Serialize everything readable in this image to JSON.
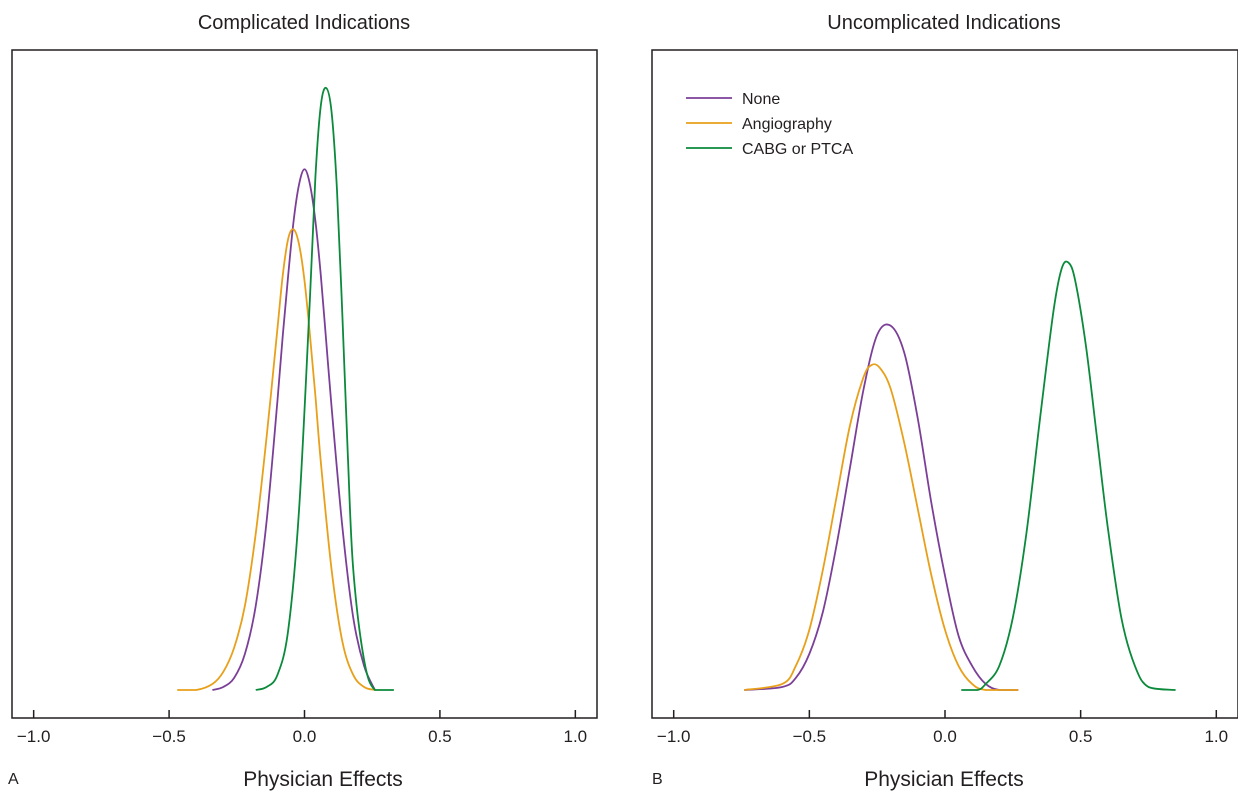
{
  "colors": {
    "none": "#7b3f98",
    "angiography": "#e8a01a",
    "cabg": "#0a8a3a",
    "axis": "#231f20"
  },
  "chart_data": [
    {
      "type": "line",
      "panel_letter": "A",
      "title": "Complicated Indications",
      "xlabel": "Physician Effects",
      "ylabel": "",
      "xlim": [
        -1.08,
        1.08
      ],
      "ylim": [
        0,
        1.0
      ],
      "xticks": [
        -1.0,
        -0.5,
        0.0,
        0.5,
        1.0
      ],
      "xtick_labels": [
        "−1.0",
        "−0.5",
        "0.0",
        "0.5",
        "1.0"
      ],
      "yticks": [],
      "grid": false,
      "legend": null,
      "series": [
        {
          "name": "None",
          "color_key": "none",
          "x": [
            -0.34,
            -0.3,
            -0.26,
            -0.22,
            -0.18,
            -0.14,
            -0.1,
            -0.08,
            -0.06,
            -0.04,
            -0.02,
            0.0,
            0.02,
            0.04,
            0.06,
            0.08,
            0.1,
            0.14,
            0.18,
            0.22,
            0.26
          ],
          "y": [
            0.0,
            0.005,
            0.02,
            0.06,
            0.14,
            0.28,
            0.48,
            0.59,
            0.69,
            0.78,
            0.84,
            0.865,
            0.84,
            0.78,
            0.69,
            0.58,
            0.47,
            0.27,
            0.12,
            0.04,
            0.0
          ]
        },
        {
          "name": "Angiography",
          "color_key": "angiography",
          "x": [
            -0.47,
            -0.4,
            -0.34,
            -0.3,
            -0.26,
            -0.22,
            -0.18,
            -0.14,
            -0.1,
            -0.08,
            -0.06,
            -0.04,
            -0.02,
            0.0,
            0.02,
            0.04,
            0.06,
            0.1,
            0.14,
            0.18,
            0.22,
            0.26
          ],
          "y": [
            0.0,
            0.0,
            0.01,
            0.03,
            0.07,
            0.14,
            0.26,
            0.42,
            0.6,
            0.69,
            0.75,
            0.765,
            0.74,
            0.68,
            0.59,
            0.49,
            0.38,
            0.2,
            0.08,
            0.025,
            0.005,
            0.0
          ]
        },
        {
          "name": "CABG or PTCA",
          "color_key": "cabg",
          "x": [
            -0.18,
            -0.14,
            -0.1,
            -0.06,
            -0.02,
            0.02,
            0.04,
            0.06,
            0.08,
            0.1,
            0.12,
            0.14,
            0.16,
            0.18,
            0.22,
            0.26,
            0.33
          ],
          "y": [
            0.0,
            0.005,
            0.025,
            0.1,
            0.3,
            0.65,
            0.85,
            0.97,
            1.0,
            0.96,
            0.83,
            0.62,
            0.39,
            0.2,
            0.05,
            0.0,
            0.0
          ]
        }
      ]
    },
    {
      "type": "line",
      "panel_letter": "B",
      "title": "Uncomplicated Indications",
      "xlabel": "Physician Effects",
      "ylabel": "",
      "xlim": [
        -1.08,
        1.08
      ],
      "ylim": [
        0,
        1.0
      ],
      "xticks": [
        -1.0,
        -0.5,
        0.0,
        0.5,
        1.0
      ],
      "xtick_labels": [
        "−1.0",
        "−0.5",
        "0.0",
        "0.5",
        "1.0"
      ],
      "yticks": [],
      "grid": false,
      "legend": {
        "position": "top-left",
        "entries": [
          {
            "label": "None",
            "color_key": "none"
          },
          {
            "label": "Angiography",
            "color_key": "angiography"
          },
          {
            "label": "CABG or PTCA",
            "color_key": "cabg"
          }
        ]
      },
      "series": [
        {
          "name": "None",
          "color_key": "none",
          "x": [
            -0.74,
            -0.6,
            -0.55,
            -0.5,
            -0.45,
            -0.4,
            -0.35,
            -0.3,
            -0.25,
            -0.2,
            -0.15,
            -0.1,
            -0.05,
            0.0,
            0.05,
            0.1,
            0.15,
            0.2,
            0.27
          ],
          "y": [
            0.0,
            0.005,
            0.02,
            0.06,
            0.13,
            0.24,
            0.37,
            0.5,
            0.59,
            0.605,
            0.56,
            0.45,
            0.31,
            0.19,
            0.09,
            0.04,
            0.01,
            0.0,
            0.0
          ]
        },
        {
          "name": "Angiography",
          "color_key": "angiography",
          "x": [
            -0.74,
            -0.6,
            -0.55,
            -0.5,
            -0.45,
            -0.4,
            -0.35,
            -0.3,
            -0.27,
            -0.24,
            -0.2,
            -0.15,
            -0.1,
            -0.05,
            0.0,
            0.05,
            0.1,
            0.15,
            0.27
          ],
          "y": [
            0.0,
            0.01,
            0.04,
            0.1,
            0.2,
            0.32,
            0.44,
            0.52,
            0.54,
            0.535,
            0.5,
            0.41,
            0.3,
            0.19,
            0.1,
            0.04,
            0.01,
            0.0,
            0.0
          ]
        },
        {
          "name": "CABG or PTCA",
          "color_key": "cabg",
          "x": [
            0.06,
            0.12,
            0.15,
            0.2,
            0.25,
            0.3,
            0.35,
            0.4,
            0.43,
            0.455,
            0.48,
            0.52,
            0.56,
            0.6,
            0.65,
            0.7,
            0.75,
            0.85
          ],
          "y": [
            0.0,
            0.0,
            0.01,
            0.04,
            0.12,
            0.26,
            0.45,
            0.63,
            0.7,
            0.71,
            0.68,
            0.57,
            0.42,
            0.27,
            0.12,
            0.04,
            0.005,
            0.0
          ]
        }
      ]
    }
  ]
}
